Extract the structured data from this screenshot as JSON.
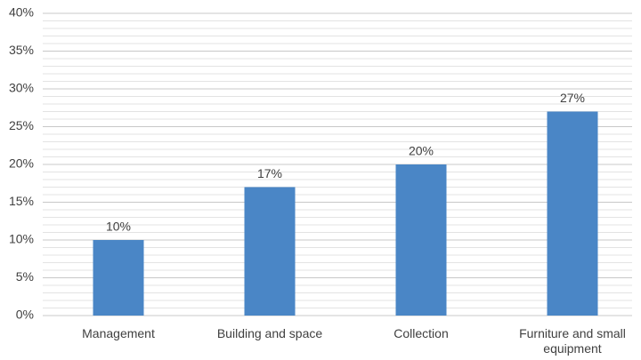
{
  "chart_data": {
    "type": "bar",
    "categories": [
      "Management",
      "Building and space",
      "Collection",
      "Furniture and small equipment"
    ],
    "values": [
      10,
      17,
      20,
      27
    ],
    "value_labels": [
      "10%",
      "17%",
      "20%",
      "27%"
    ],
    "color": "#4a86c6",
    "ylim": [
      0,
      40
    ],
    "yticks": [
      {
        "value": 0,
        "label": "0%"
      },
      {
        "value": 5,
        "label": "5%"
      },
      {
        "value": 10,
        "label": "10%"
      },
      {
        "value": 15,
        "label": "15%"
      },
      {
        "value": 20,
        "label": "20%"
      },
      {
        "value": 25,
        "label": "25%"
      },
      {
        "value": 30,
        "label": "30%"
      },
      {
        "value": 35,
        "label": "35%"
      },
      {
        "value": 40,
        "label": "40%"
      }
    ],
    "yminorticks": [
      1,
      2,
      3,
      4,
      6,
      7,
      8,
      9,
      11,
      12,
      13,
      14,
      16,
      17,
      18,
      19,
      21,
      22,
      23,
      24,
      26,
      27,
      28,
      29,
      31,
      32,
      33,
      34,
      36,
      37,
      38,
      39
    ],
    "grid": true
  }
}
